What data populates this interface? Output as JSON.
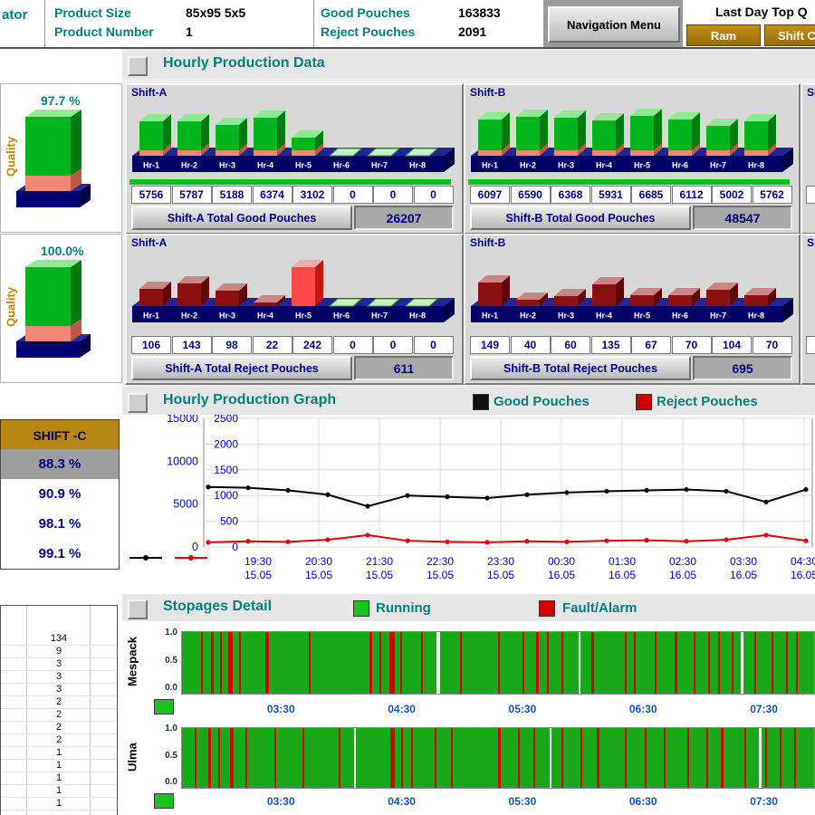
{
  "topbar": {
    "operator_partial": "ator",
    "product_size_label": "Product Size",
    "product_size_value": "85x95 5x5",
    "product_number_label": "Product Number",
    "product_number_value": "1",
    "good_label": "Good Pouches",
    "good_value": "163833",
    "reject_label": "Reject Pouches",
    "reject_value": "2091",
    "nav_button": "Navigation Menu",
    "last_day": "Last Day Top Q",
    "ram_button": "Ram",
    "shift_button": "Shift C"
  },
  "left": {
    "quality_label": "Quality",
    "quality_good_pct": "97.7 %",
    "quality_reject_pct": "100.0%",
    "shift_c_header": "SHIFT -C",
    "shift_c_rows": [
      "88.3 %",
      "90.9 %",
      "98.1 %",
      "99.1 %"
    ],
    "counts": [
      "134",
      "9",
      "3",
      "3",
      "3",
      "2",
      "2",
      "2",
      "2",
      "1",
      "1",
      "1",
      "1",
      "1"
    ]
  },
  "production": {
    "header": "Hourly Production Data",
    "panels": [
      {
        "id": "shift_a_good",
        "title": "Shift-A",
        "total_label": "Shift-A Total Good Pouches",
        "total": "26207"
      },
      {
        "id": "shift_b_good",
        "title": "Shift-B",
        "total_label": "Shift-B Total Good Pouches",
        "total": "48547"
      },
      {
        "id": "shift_a_reject",
        "title": "Shift-A",
        "total_label": "Shift-A Total Reject Pouches",
        "total": "611"
      },
      {
        "id": "shift_b_reject",
        "title": "Shift-B",
        "total_label": "Shift-B Total Reject Pouches",
        "total": "695"
      }
    ],
    "partial_title": "Sh",
    "partial_good_value": "6",
    "partial_reject_value": "1"
  },
  "graph": {
    "header": "Hourly Production Graph",
    "legend": [
      {
        "label": "Good Pouches",
        "color": "#111111"
      },
      {
        "label": "Reject Pouches",
        "color": "#cc0000"
      }
    ]
  },
  "stopages": {
    "header": "Stopages Detail",
    "legend": [
      {
        "label": "Running",
        "color": "#17c417"
      },
      {
        "label": "Fault/Alarm",
        "color": "#d40000"
      }
    ]
  },
  "chart_data": [
    {
      "id": "shift_a_good",
      "type": "bar",
      "theme": "good",
      "title": "Shift-A hourly good pouches",
      "categories": [
        "Hr-1",
        "Hr-2",
        "Hr-3",
        "Hr-4",
        "Hr-5",
        "Hr-6",
        "Hr-7",
        "Hr-8"
      ],
      "values": [
        5756,
        5787,
        5188,
        6374,
        3102,
        0,
        0,
        0
      ],
      "axis_max": 7000
    },
    {
      "id": "shift_b_good",
      "type": "bar",
      "theme": "good",
      "title": "Shift-B hourly good pouches",
      "categories": [
        "Hr-1",
        "Hr-2",
        "Hr-3",
        "Hr-4",
        "Hr-5",
        "Hr-6",
        "Hr-7",
        "Hr-8"
      ],
      "values": [
        6097,
        6590,
        6368,
        5931,
        6685,
        6112,
        5002,
        5762
      ],
      "axis_max": 7000
    },
    {
      "id": "shift_a_reject",
      "type": "bar",
      "theme": "reject",
      "title": "Shift-A hourly reject pouches",
      "categories": [
        "Hr-1",
        "Hr-2",
        "Hr-3",
        "Hr-4",
        "Hr-5",
        "Hr-6",
        "Hr-7",
        "Hr-8"
      ],
      "values": [
        106,
        143,
        98,
        22,
        242,
        0,
        0,
        0
      ],
      "axis_max": 260,
      "highlight_index": 4
    },
    {
      "id": "shift_b_reject",
      "type": "bar",
      "theme": "reject",
      "title": "Shift-B hourly reject pouches",
      "categories": [
        "Hr-1",
        "Hr-2",
        "Hr-3",
        "Hr-4",
        "Hr-5",
        "Hr-6",
        "Hr-7",
        "Hr-8"
      ],
      "values": [
        149,
        40,
        60,
        135,
        67,
        70,
        104,
        70
      ],
      "axis_max": 260
    },
    {
      "id": "hourly_graph",
      "type": "line",
      "title": "Hourly Production Graph",
      "y_axis_left": [
        "15000",
        "10000",
        "5000",
        "0"
      ],
      "y_axis_inner": [
        "2500",
        "2000",
        "1500",
        "1000",
        "500",
        "0"
      ],
      "x_ticks": [
        {
          "time": "19:30",
          "date": "15.05"
        },
        {
          "time": "20:30",
          "date": "15.05"
        },
        {
          "time": "21:30",
          "date": "15.05"
        },
        {
          "time": "22:30",
          "date": "15.05"
        },
        {
          "time": "23:30",
          "date": "15.05"
        },
        {
          "time": "00:30",
          "date": "16.05"
        },
        {
          "time": "01:30",
          "date": "16.05"
        },
        {
          "time": "02:30",
          "date": "16.05"
        },
        {
          "time": "03:30",
          "date": "16.05"
        },
        {
          "time": "04:30",
          "date": "16.05"
        }
      ],
      "series": [
        {
          "name": "Good Pouches",
          "color": "#000000",
          "axis_max": 15000,
          "values": [
            7000,
            6900,
            6600,
            6100,
            4750,
            6000,
            5850,
            5700,
            6100,
            6350,
            6500,
            6600,
            6700,
            6500,
            5250,
            6700
          ]
        },
        {
          "name": "Reject Pouches",
          "color": "#e00000",
          "axis_max": 2500,
          "values": [
            90,
            110,
            100,
            140,
            230,
            120,
            100,
            90,
            110,
            100,
            120,
            130,
            110,
            140,
            230,
            120
          ]
        }
      ]
    },
    {
      "id": "mespack_timeline",
      "type": "area",
      "machine": "Mespack",
      "y_ticks": [
        "1.0",
        "0.5",
        "0.0"
      ],
      "x_ticks": [
        "03:30",
        "04:30",
        "05:30",
        "06:30",
        "07:30"
      ],
      "running_color": "#17a817",
      "fault_color": "#d40000",
      "fault_marks": [
        [
          0.03,
          2
        ],
        [
          0.046,
          3
        ],
        [
          0.06,
          2
        ],
        [
          0.073,
          5
        ],
        [
          0.09,
          2
        ],
        [
          0.132,
          4
        ],
        [
          0.2,
          2
        ],
        [
          0.297,
          3
        ],
        [
          0.312,
          2
        ],
        [
          0.328,
          6
        ],
        [
          0.345,
          2
        ],
        [
          0.378,
          2
        ],
        [
          0.44,
          2
        ],
        [
          0.5,
          2
        ],
        [
          0.538,
          2
        ],
        [
          0.56,
          3
        ],
        [
          0.578,
          2
        ],
        [
          0.6,
          2
        ],
        [
          0.648,
          3
        ],
        [
          0.7,
          2
        ],
        [
          0.715,
          2
        ],
        [
          0.748,
          2
        ],
        [
          0.78,
          3
        ],
        [
          0.81,
          2
        ],
        [
          0.832,
          2
        ],
        [
          0.848,
          2
        ],
        [
          0.87,
          2
        ],
        [
          0.906,
          2
        ],
        [
          0.932,
          2
        ],
        [
          0.955,
          2
        ],
        [
          0.972,
          2
        ]
      ],
      "gaps": [
        [
          0.403,
          4
        ],
        [
          0.627,
          2
        ],
        [
          0.884,
          3
        ]
      ]
    },
    {
      "id": "ulma_timeline",
      "type": "area",
      "machine": "Ulma",
      "y_ticks": [
        "1.0",
        "0.5",
        "0.0"
      ],
      "x_ticks": [
        "03:30",
        "04:30",
        "05:30",
        "06:30",
        "07:30"
      ],
      "running_color": "#17a817",
      "fault_color": "#d40000",
      "fault_marks": [
        [
          0.02,
          2
        ],
        [
          0.042,
          3
        ],
        [
          0.058,
          2
        ],
        [
          0.076,
          4
        ],
        [
          0.1,
          2
        ],
        [
          0.146,
          2
        ],
        [
          0.19,
          2
        ],
        [
          0.248,
          2
        ],
        [
          0.33,
          5
        ],
        [
          0.346,
          2
        ],
        [
          0.363,
          2
        ],
        [
          0.4,
          2
        ],
        [
          0.426,
          2
        ],
        [
          0.5,
          3
        ],
        [
          0.532,
          2
        ],
        [
          0.556,
          2
        ],
        [
          0.6,
          2
        ],
        [
          0.63,
          2
        ],
        [
          0.656,
          3
        ],
        [
          0.7,
          2
        ],
        [
          0.732,
          2
        ],
        [
          0.762,
          2
        ],
        [
          0.8,
          2
        ],
        [
          0.83,
          2
        ],
        [
          0.852,
          3
        ],
        [
          0.89,
          2
        ],
        [
          0.922,
          2
        ],
        [
          0.946,
          2
        ],
        [
          0.968,
          2
        ]
      ],
      "gaps": [
        [
          0.272,
          2
        ],
        [
          0.582,
          2
        ],
        [
          0.912,
          3
        ]
      ]
    }
  ]
}
